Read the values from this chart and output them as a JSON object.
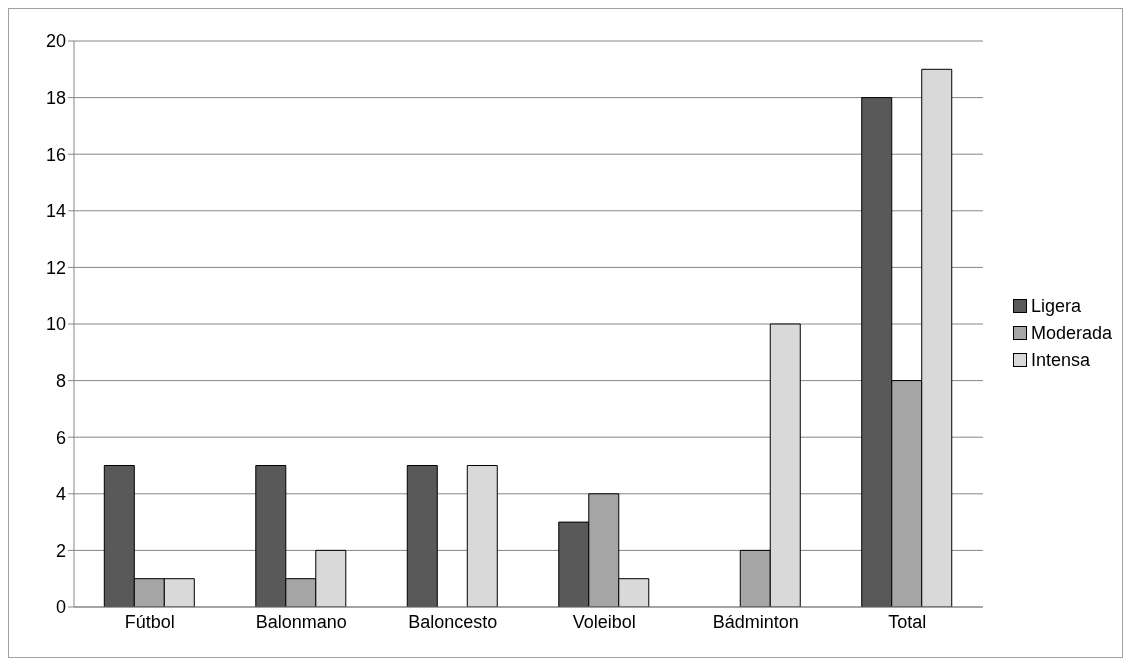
{
  "chart_data": {
    "type": "bar",
    "categories": [
      "Fútbol",
      "Balonmano",
      "Baloncesto",
      "Voleibol",
      "Bádminton",
      "Total"
    ],
    "series": [
      {
        "name": "Ligera",
        "color": "#595959",
        "values": [
          5,
          5,
          5,
          3,
          0,
          18
        ]
      },
      {
        "name": "Moderada",
        "color": "#a5a5a5",
        "values": [
          1,
          1,
          0,
          4,
          2,
          8
        ]
      },
      {
        "name": "Intensa",
        "color": "#d9d9d9",
        "values": [
          1,
          2,
          5,
          1,
          10,
          19
        ]
      }
    ],
    "ylim": [
      0,
      20
    ],
    "yticks": [
      0,
      2,
      4,
      6,
      8,
      10,
      12,
      14,
      16,
      18,
      20
    ],
    "grid": "y",
    "legend": "right"
  }
}
